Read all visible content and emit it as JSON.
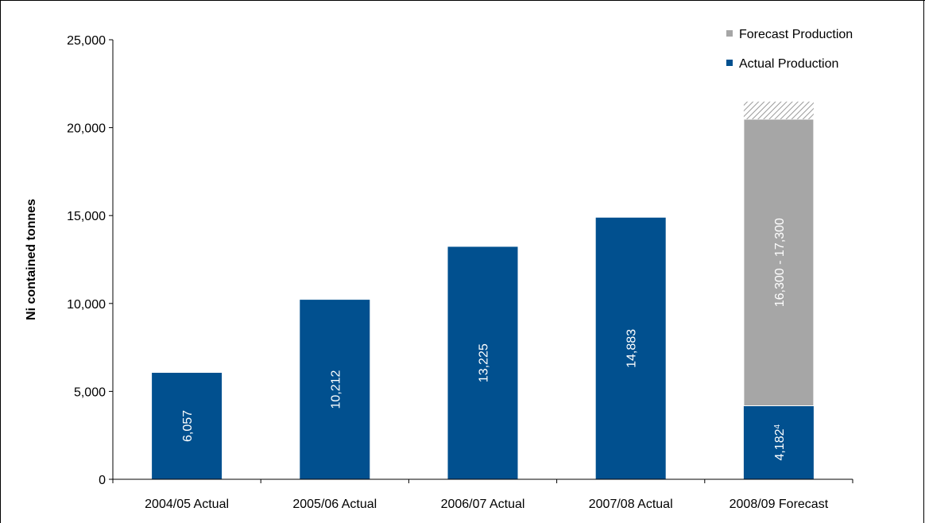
{
  "chart_data": {
    "type": "bar",
    "stacked": true,
    "categories": [
      "2004/05 Actual",
      "2005/06 Actual",
      "2006/07 Actual",
      "2007/08 Actual",
      "2008/09   Forecast"
    ],
    "series": [
      {
        "name": "Actual Production",
        "color": "#01508f",
        "values": [
          6057,
          10212,
          13225,
          14883,
          4182
        ]
      },
      {
        "name": "Forecast Production",
        "color": "#a6a6a6",
        "values": [
          0,
          0,
          0,
          0,
          16300
        ]
      },
      {
        "name": "",
        "pattern": "hatched",
        "color": "#bfbfbf",
        "values": [
          0,
          0,
          0,
          0,
          1000
        ]
      }
    ],
    "data_labels": [
      "6,057",
      "10,212",
      "13,225",
      "14,883",
      "4,182",
      "16,300 - 17,300"
    ],
    "data_label_superscript": {
      "4,182": "4"
    },
    "ylabel": "Ni contained tonnes",
    "xlabel": "",
    "ylim": [
      0,
      25000
    ],
    "yticks": [
      0,
      5000,
      10000,
      15000,
      20000,
      25000
    ],
    "ytick_labels": [
      "0",
      "5,000",
      "10,000",
      "15,000",
      "20,000",
      "25,000"
    ],
    "legend": {
      "placement": "top-right",
      "entries": [
        "Forecast Production",
        "Actual Production"
      ]
    },
    "grid": false
  }
}
